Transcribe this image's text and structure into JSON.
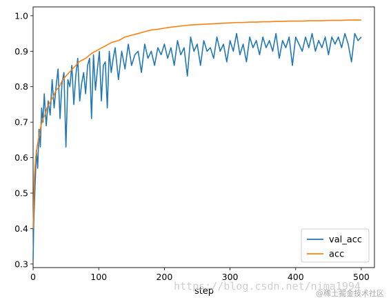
{
  "watermark": {
    "url_text": "https://blog.csdn.net/nima1994",
    "brand_text": "@稀土掘金技术社区"
  },
  "chart_data": {
    "type": "line",
    "title": "",
    "xlabel": "step",
    "ylabel": "",
    "xlim": [
      0,
      520
    ],
    "ylim": [
      0.29,
      1.025
    ],
    "xticks": [
      0,
      100,
      200,
      300,
      400,
      500
    ],
    "yticks": [
      0.3,
      0.4,
      0.5,
      0.6,
      0.7,
      0.8,
      0.9,
      1.0
    ],
    "xtick_labels": [
      "0",
      "100",
      "200",
      "300",
      "400",
      "500"
    ],
    "ytick_labels": [
      "0.3",
      "0.4",
      "0.5",
      "0.6",
      "0.7",
      "0.8",
      "0.9",
      "1.0"
    ],
    "legend_position": "lower right",
    "grid": false,
    "series": [
      {
        "name": "val_acc",
        "color": "#1f77b4",
        "x": [
          0,
          1,
          3,
          5,
          7,
          9,
          11,
          13,
          15,
          17,
          20,
          23,
          26,
          29,
          32,
          35,
          38,
          41,
          44,
          47,
          50,
          53,
          56,
          59,
          62,
          65,
          68,
          71,
          74,
          77,
          80,
          83,
          86,
          89,
          92,
          95,
          98,
          101,
          104,
          107,
          110,
          113,
          116,
          119,
          122,
          125,
          130,
          135,
          140,
          145,
          150,
          155,
          160,
          165,
          170,
          175,
          180,
          185,
          190,
          195,
          200,
          205,
          210,
          215,
          220,
          225,
          230,
          235,
          240,
          245,
          250,
          255,
          260,
          265,
          270,
          275,
          280,
          285,
          290,
          295,
          300,
          305,
          310,
          315,
          320,
          325,
          330,
          335,
          340,
          345,
          350,
          355,
          360,
          365,
          370,
          375,
          380,
          385,
          390,
          395,
          400,
          405,
          410,
          415,
          420,
          425,
          430,
          435,
          440,
          445,
          450,
          455,
          460,
          465,
          470,
          475,
          480,
          485,
          490,
          495,
          500
        ],
        "values": [
          0.31,
          0.42,
          0.52,
          0.62,
          0.57,
          0.68,
          0.63,
          0.74,
          0.7,
          0.78,
          0.69,
          0.76,
          0.72,
          0.82,
          0.74,
          0.8,
          0.85,
          0.71,
          0.81,
          0.84,
          0.63,
          0.82,
          0.8,
          0.86,
          0.75,
          0.83,
          0.88,
          0.76,
          0.81,
          0.84,
          0.78,
          0.86,
          0.88,
          0.71,
          0.89,
          0.79,
          0.85,
          0.9,
          0.76,
          0.86,
          0.87,
          0.74,
          0.9,
          0.84,
          0.88,
          0.91,
          0.82,
          0.9,
          0.85,
          0.92,
          0.86,
          0.89,
          0.9,
          0.84,
          0.92,
          0.88,
          0.9,
          0.86,
          0.91,
          0.89,
          0.92,
          0.88,
          0.91,
          0.86,
          0.93,
          0.89,
          0.91,
          0.83,
          0.94,
          0.9,
          0.92,
          0.86,
          0.93,
          0.9,
          0.91,
          0.88,
          0.94,
          0.9,
          0.92,
          0.87,
          0.93,
          0.9,
          0.95,
          0.89,
          0.92,
          0.87,
          0.94,
          0.91,
          0.93,
          0.89,
          0.94,
          0.91,
          0.93,
          0.9,
          0.95,
          0.88,
          0.93,
          0.91,
          0.94,
          0.86,
          0.94,
          0.92,
          0.9,
          0.94,
          0.91,
          0.95,
          0.9,
          0.93,
          0.91,
          0.94,
          0.89,
          0.94,
          0.92,
          0.94,
          0.91,
          0.95,
          0.92,
          0.87,
          0.95,
          0.93,
          0.94
        ]
      },
      {
        "name": "acc",
        "color": "#ff7f0e",
        "x": [
          0,
          2,
          4,
          6,
          8,
          10,
          12,
          15,
          18,
          21,
          24,
          27,
          30,
          35,
          40,
          45,
          50,
          55,
          60,
          65,
          70,
          75,
          80,
          90,
          100,
          110,
          120,
          130,
          140,
          150,
          160,
          170,
          180,
          190,
          200,
          210,
          220,
          230,
          240,
          250,
          260,
          270,
          280,
          290,
          300,
          310,
          320,
          330,
          340,
          350,
          360,
          370,
          380,
          390,
          400,
          410,
          420,
          430,
          440,
          450,
          460,
          470,
          480,
          490,
          500
        ],
        "values": [
          0.4,
          0.55,
          0.6,
          0.63,
          0.65,
          0.67,
          0.69,
          0.71,
          0.72,
          0.74,
          0.75,
          0.76,
          0.77,
          0.79,
          0.8,
          0.82,
          0.83,
          0.84,
          0.85,
          0.86,
          0.87,
          0.875,
          0.88,
          0.895,
          0.905,
          0.915,
          0.925,
          0.93,
          0.94,
          0.945,
          0.95,
          0.955,
          0.96,
          0.962,
          0.965,
          0.968,
          0.97,
          0.972,
          0.974,
          0.975,
          0.976,
          0.977,
          0.978,
          0.979,
          0.98,
          0.981,
          0.981,
          0.982,
          0.982,
          0.983,
          0.983,
          0.984,
          0.984,
          0.985,
          0.985,
          0.985,
          0.986,
          0.986,
          0.986,
          0.987,
          0.987,
          0.987,
          0.988,
          0.988,
          0.988
        ]
      }
    ]
  }
}
